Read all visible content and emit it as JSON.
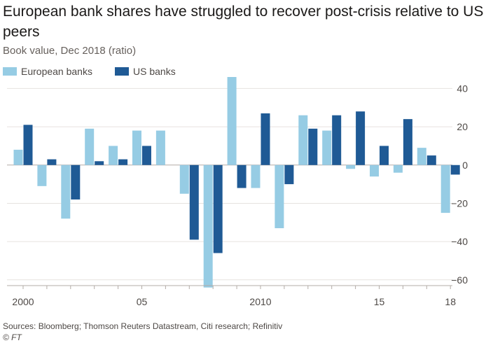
{
  "title": "European bank shares have struggled to recover post-crisis relative to US peers",
  "subtitle": "Book value, Dec 2018 (ratio)",
  "footer": {
    "sources": "Sources: Bloomberg; Thomson Reuters Datastream, Citi research; Refinitiv",
    "credit": "© FT"
  },
  "chart_data": {
    "type": "bar",
    "categories": [
      2000,
      2001,
      2002,
      2003,
      2004,
      2005,
      2006,
      2007,
      2008,
      2009,
      2010,
      2011,
      2012,
      2013,
      2014,
      2015,
      2016,
      2017,
      2018
    ],
    "x_tick_labels": [
      {
        "category": 2000,
        "label": "2000"
      },
      {
        "category": 2005,
        "label": "05"
      },
      {
        "category": 2010,
        "label": "2010"
      },
      {
        "category": 2015,
        "label": "15"
      },
      {
        "category": 2018,
        "label": "18"
      }
    ],
    "series": [
      {
        "name": "European banks",
        "color": "#96cce4",
        "values": [
          8,
          -11,
          -28,
          19,
          10,
          18,
          18,
          -15,
          -64,
          46,
          -12,
          -33,
          26,
          18,
          -2,
          -6,
          -4,
          9,
          -25
        ]
      },
      {
        "name": "US banks",
        "color": "#1f5a95",
        "values": [
          21,
          3,
          -18,
          2,
          3,
          10,
          null,
          -39,
          -46,
          -12,
          27,
          -10,
          19,
          26,
          28,
          10,
          24,
          5,
          -5
        ]
      }
    ],
    "ylim": [
      -63,
      46
    ],
    "yticks": [
      40,
      20,
      0,
      -20,
      -40,
      -60
    ],
    "y_axis_position": "right",
    "grid": true,
    "legend_position": "top-left",
    "xlabel": "",
    "ylabel": ""
  }
}
